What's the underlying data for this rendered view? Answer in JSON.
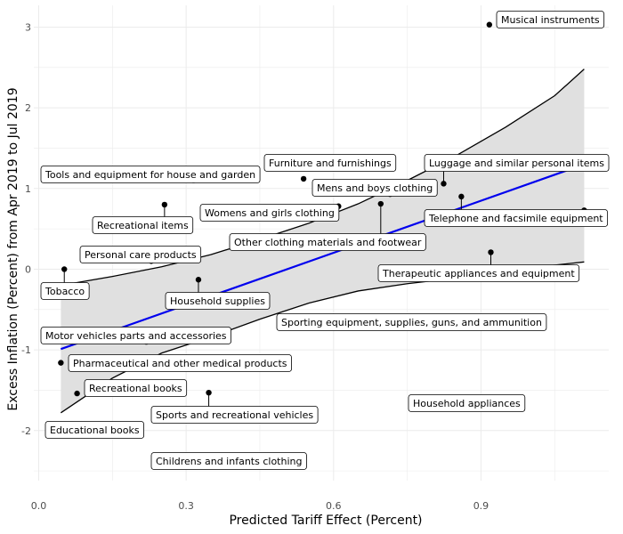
{
  "chart_data": {
    "type": "scatter",
    "title": "",
    "xlabel": "Predicted Tariff Effect (Percent)",
    "ylabel": "Excess Inflation (Percent) from Apr 2019 to Jul 2019",
    "xlim": [
      -0.01,
      1.16
    ],
    "ylim": [
      -2.62,
      3.27
    ],
    "x_ticks": [
      0.0,
      0.3,
      0.6,
      0.9
    ],
    "x_tick_labels": [
      "0.0",
      "0.3",
      "0.6",
      "0.9"
    ],
    "y_ticks": [
      -2,
      -1,
      0,
      1,
      2,
      3
    ],
    "y_tick_labels": [
      "-2",
      "-1",
      "0",
      "1",
      "2",
      "3"
    ],
    "grid": true,
    "colors": {
      "points": "#000000",
      "fit_line": "#0000ee",
      "confidence_band": "#e0e0e0",
      "grid": "#ebebeb"
    },
    "points": [
      {
        "label": "Musical instruments",
        "x": 0.917,
        "y": 3.03
      },
      {
        "label": "Furniture and furnishings",
        "x": 0.539,
        "y": 1.12
      },
      {
        "label": "Tools and equipment for house and garden",
        "x": 0.315,
        "y": 1.1
      },
      {
        "label": "Luggage and similar personal items",
        "x": 0.824,
        "y": 1.06
      },
      {
        "label": "Mens and boys clothing",
        "x": 0.715,
        "y": 0.93
      },
      {
        "label": "Telephone and facsimile equipment",
        "x": 0.86,
        "y": 0.9
      },
      {
        "label": "Womens and girls clothing",
        "x": 0.61,
        "y": 0.78
      },
      {
        "label": "Recreational items",
        "x": 0.256,
        "y": 0.8
      },
      {
        "label": "Other clothing materials and footwear",
        "x": 0.696,
        "y": 0.81
      },
      {
        "label": "Telephone and facsimile equipment",
        "x": 1.11,
        "y": 0.73
      },
      {
        "label": "Therapeutic appliances and equipment",
        "x": 0.92,
        "y": 0.21
      },
      {
        "label": "Personal care products",
        "x": 0.229,
        "y": 0.1
      },
      {
        "label": "Tobacco",
        "x": 0.052,
        "y": 0.0
      },
      {
        "label": "Household supplies",
        "x": 0.325,
        "y": -0.13
      },
      {
        "label": "Sporting equipment, supplies, guns, and ammunition",
        "x": 0.565,
        "y": -0.72
      },
      {
        "label": "Motor vehicles parts and accessories",
        "x": 0.219,
        "y": -0.9
      },
      {
        "label": "Pharmaceutical and other medical products",
        "x": 0.045,
        "y": -1.16
      },
      {
        "label": "Recreational books",
        "x": 0.078,
        "y": -1.54
      },
      {
        "label": "Sports and recreational vehicles",
        "x": 0.346,
        "y": -1.53
      },
      {
        "label": "Household appliances",
        "x": 0.831,
        "y": -1.72
      },
      {
        "label": "Educational books",
        "x": 0.075,
        "y": -2.05
      },
      {
        "label": "Childrens and infants clothing",
        "x": 0.343,
        "y": -2.44
      }
    ],
    "fit_line": {
      "x": [
        0.045,
        1.11
      ],
      "y": [
        -0.99,
        1.3
      ]
    },
    "confidence_band": {
      "x": [
        0.045,
        0.15,
        0.25,
        0.35,
        0.45,
        0.55,
        0.65,
        0.75,
        0.85,
        0.95,
        1.05,
        1.11
      ],
      "upper": [
        -0.2,
        -0.09,
        0.03,
        0.18,
        0.37,
        0.57,
        0.81,
        1.1,
        1.41,
        1.76,
        2.15,
        2.48
      ],
      "lower": [
        -1.78,
        -1.35,
        -1.04,
        -0.84,
        -0.62,
        -0.42,
        -0.27,
        -0.18,
        -0.11,
        -0.03,
        0.05,
        0.09
      ]
    }
  }
}
